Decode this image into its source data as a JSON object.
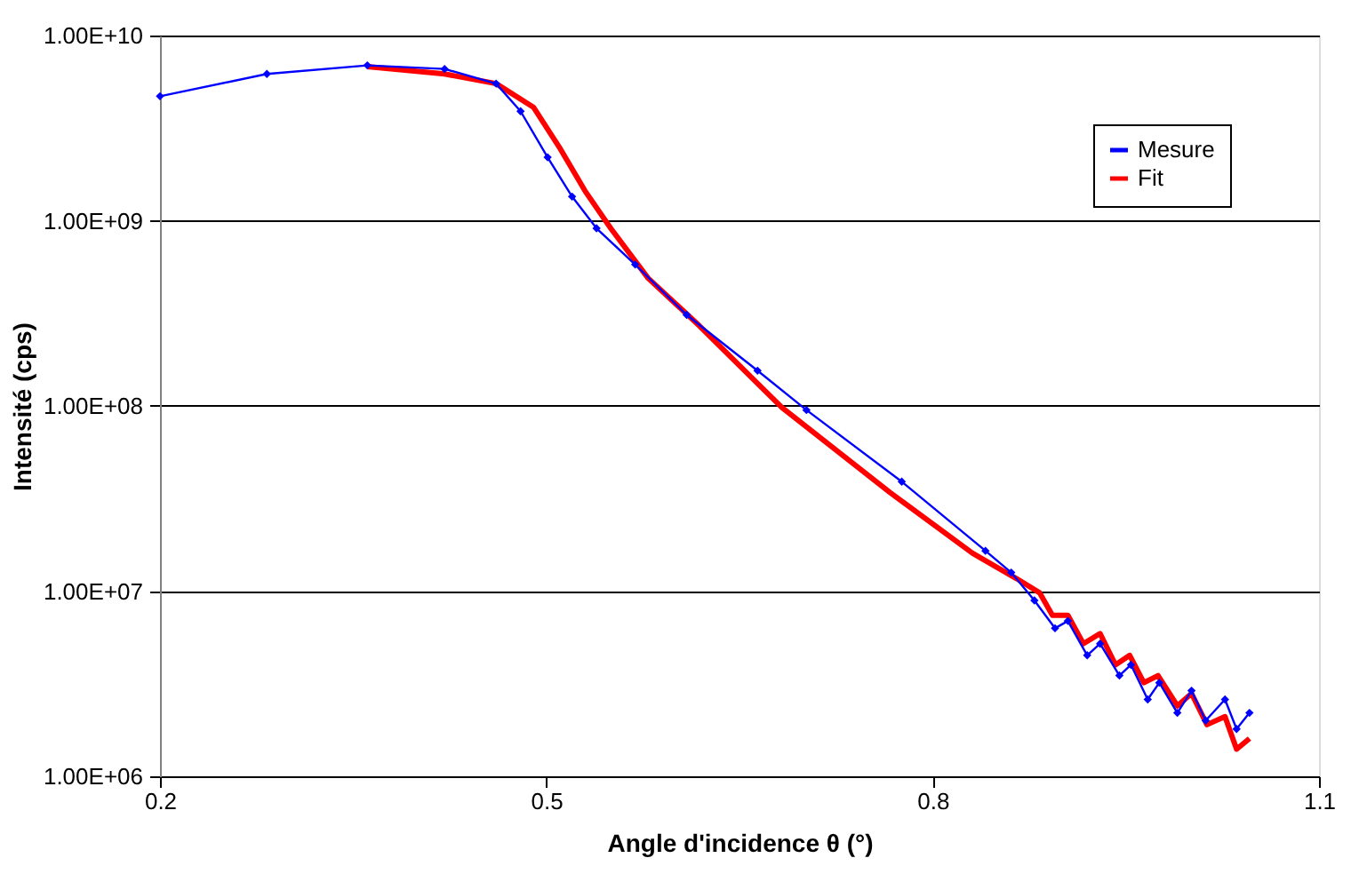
{
  "chart_data": {
    "type": "line",
    "xlabel": "Angle d'incidence θ (°)",
    "ylabel": "Intensité (cps)",
    "log": "y",
    "grid": "y",
    "legend": "top right",
    "xlim": [
      0.2,
      1.1
    ],
    "xticks": [
      0.2,
      0.5,
      0.8,
      1.1
    ],
    "ylim": [
      1000000,
      10000000000
    ],
    "yticks": [
      {
        "value": 1000000,
        "label": "1.00E+06"
      },
      {
        "value": 10000000,
        "label": "1.00E+07"
      },
      {
        "value": 100000000,
        "label": "1.00E+08"
      },
      {
        "value": 1000000000,
        "label": "1.00E+09"
      },
      {
        "value": 10000000000,
        "label": "1.00E+10"
      }
    ],
    "series": [
      {
        "name": "Mesure",
        "color": "#0000ff",
        "marker": "diamond",
        "line_style": "solid",
        "x": [
          0.2,
          0.283,
          0.361,
          0.421,
          0.461,
          0.48,
          0.501,
          0.52,
          0.539,
          0.569,
          0.609,
          0.664,
          0.702,
          0.776,
          0.841,
          0.861,
          0.879,
          0.895,
          0.905,
          0.92,
          0.93,
          0.945,
          0.954,
          0.967,
          0.976,
          0.99,
          1.001,
          1.012,
          1.027,
          1.036,
          1.046
        ],
        "values": [
          4700000000,
          6200000000,
          6900000000,
          6600000000,
          5500000000,
          3900000000,
          2200000000,
          1350000000,
          910000000,
          580000000,
          310000000,
          155000000,
          95000000,
          39000000,
          16500000,
          12600000,
          8900000,
          6300000,
          6900000,
          4500000,
          5200000,
          3500000,
          4000000,
          2600000,
          3200000,
          2200000,
          2900000,
          2000000,
          2600000,
          1800000,
          2200000
        ]
      },
      {
        "name": "Fit",
        "color": "#ff0000",
        "marker": "none",
        "line_style": "solid",
        "x": [
          0.361,
          0.421,
          0.461,
          0.49,
          0.51,
          0.53,
          0.55,
          0.579,
          0.619,
          0.665,
          0.683,
          0.767,
          0.831,
          0.865,
          0.883,
          0.893,
          0.905,
          0.917,
          0.93,
          0.942,
          0.953,
          0.964,
          0.975,
          0.99,
          1.001,
          1.013,
          1.027,
          1.036,
          1.046
        ],
        "values": [
          6800000000,
          6200000000,
          5500000000,
          4100000000,
          2500000000,
          1450000000,
          910000000,
          490000000,
          270000000,
          130000000,
          98000000,
          34000000,
          16000000,
          11700000,
          9800000,
          7400000,
          7400000,
          5200000,
          5900000,
          4000000,
          4500000,
          3200000,
          3500000,
          2400000,
          2800000,
          1900000,
          2100000,
          1400000,
          1600000
        ]
      }
    ]
  }
}
